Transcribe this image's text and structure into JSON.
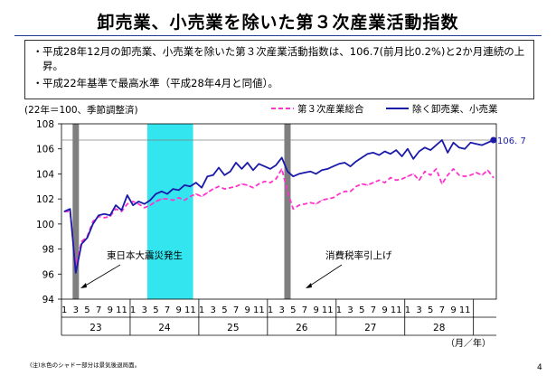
{
  "slide": {
    "title": "卸売業、小売業を除いた第３次産業活動指数",
    "bullets": [
      "平成28年12月の卸売業、小売業を除いた第３次産業活動指数は、106.7(前月比0.2%)と2か月連続の上昇。",
      "平成22年基準で最高水準（平成28年4月と同値）。"
    ],
    "bullet_marker": "・",
    "footnote": "(注)水色のシャドー部分は景気後退局面。",
    "page_number": "4"
  },
  "chart_data": {
    "type": "line",
    "ylabel": "(22年＝100、季節調整済)",
    "ylim": [
      94,
      108
    ],
    "yticks": [
      "94",
      "96",
      "98",
      "100",
      "102",
      "104",
      "106",
      "108"
    ],
    "month_tick_labels": [
      "1",
      "3",
      "5",
      "7",
      "9",
      "11"
    ],
    "year_labels": [
      "23",
      "24",
      "25",
      "26",
      "27",
      "28"
    ],
    "unit_label": "（月／年）",
    "reference_line": 106.7,
    "end_value_label": "106. 7",
    "annotations": [
      "東日本大震災発生",
      "消費税率引上げ"
    ],
    "shaded_recession": {
      "from": "2012-04",
      "to": "2012-11"
    },
    "event_bars": [
      "2011-03",
      "2014-04"
    ],
    "colors": {
      "total": "#ff33cc",
      "excl": "#1a1aaa",
      "recession": "#33e5ef",
      "event_bar": "#7f7f7f",
      "reference": "#808080"
    },
    "series": [
      {
        "name": "第３次産業総合",
        "values": [
          101.0,
          101.0,
          96.6,
          98.6,
          99.0,
          100.2,
          100.6,
          100.5,
          100.6,
          101.2,
          101.0,
          101.6,
          101.8,
          101.6,
          101.3,
          101.5,
          101.8,
          102.0,
          102.0,
          101.9,
          102.1,
          101.9,
          102.2,
          102.4,
          102.2,
          102.5,
          102.8,
          103.0,
          102.8,
          102.9,
          103.0,
          103.2,
          103.1,
          102.9,
          103.2,
          103.4,
          103.3,
          103.6,
          104.4,
          102.6,
          101.2,
          101.5,
          101.6,
          101.7,
          101.6,
          101.9,
          102.0,
          102.1,
          102.4,
          102.6,
          102.6,
          103.0,
          103.2,
          103.1,
          103.3,
          103.5,
          103.3,
          103.7,
          103.5,
          103.6,
          103.8,
          104.0,
          103.5,
          104.2,
          103.9,
          104.4,
          103.2,
          103.9,
          104.4,
          103.9,
          103.8,
          103.9,
          104.1,
          103.9,
          104.3,
          103.7
        ]
      },
      {
        "name": "除く卸売業、小売業",
        "values": [
          101.0,
          101.2,
          96.1,
          98.4,
          98.9,
          100.0,
          100.7,
          100.8,
          100.7,
          101.5,
          101.1,
          102.3,
          101.5,
          101.8,
          101.6,
          101.9,
          102.4,
          102.6,
          102.4,
          102.8,
          102.7,
          103.1,
          103.0,
          103.3,
          102.9,
          103.8,
          103.9,
          104.5,
          103.9,
          104.2,
          104.9,
          104.4,
          104.9,
          104.3,
          104.8,
          104.6,
          104.4,
          104.7,
          105.3,
          104.2,
          103.8,
          104.0,
          104.1,
          104.2,
          104.0,
          104.3,
          104.4,
          104.6,
          104.8,
          104.9,
          104.6,
          105.0,
          105.3,
          105.6,
          105.7,
          105.5,
          105.8,
          105.6,
          105.9,
          105.4,
          106.0,
          105.2,
          105.8,
          106.1,
          105.9,
          106.3,
          106.7,
          105.7,
          106.5,
          106.1,
          106.0,
          106.5,
          106.4,
          106.3,
          106.5,
          106.7
        ]
      }
    ]
  }
}
